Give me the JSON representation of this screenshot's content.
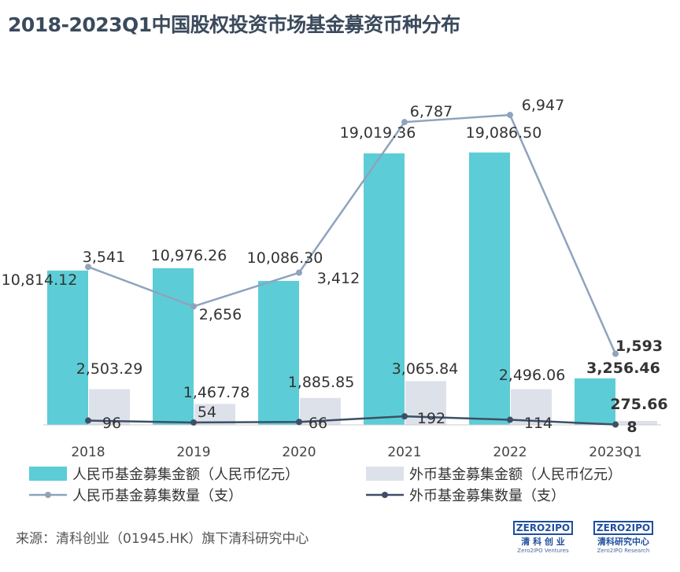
{
  "title": "2018-2023Q1中国股权投资市场基金募资币种分布",
  "source": "来源：清科创业（01945.HK）旗下清科研究中心",
  "logos": [
    {
      "mark": "ZERO2IPO",
      "cn": "清 科 创 业",
      "en": "Zero2IPO Ventures"
    },
    {
      "mark": "ZERO2IPO",
      "cn": "清科研究中心",
      "en": "Zero2IPO Research"
    }
  ],
  "chart_data": {
    "type": "bar+line",
    "categories": [
      "2018",
      "2019",
      "2020",
      "2021",
      "2022",
      "2023Q1"
    ],
    "series": [
      {
        "name": "人民币基金募集金额（人民币亿元）",
        "type": "bar",
        "color": "#5ccdd6",
        "values": [
          10814.12,
          10976.26,
          10086.3,
          19019.36,
          19086.5,
          3256.46
        ],
        "labels": [
          "10,814.12",
          "10,976.26",
          "10,086.30",
          "19,019.36",
          "19,086.50",
          "3,256.46"
        ]
      },
      {
        "name": "外币基金募集金额（人民币亿元）",
        "type": "bar",
        "color": "#dde1ea",
        "values": [
          2503.29,
          1467.78,
          1885.85,
          3065.84,
          2496.06,
          275.66
        ],
        "labels": [
          "2,503.29",
          "1,467.78",
          "1,885.85",
          "3,065.84",
          "2,496.06",
          "275.66"
        ]
      },
      {
        "name": "人民币基金募集数量（支）",
        "type": "line",
        "color": "#8fa3bd",
        "values": [
          3541,
          2656,
          3412,
          6787,
          6947,
          1593
        ],
        "labels": [
          "3,541",
          "2,656",
          "3,412",
          "6,787",
          "6,947",
          "1,593"
        ]
      },
      {
        "name": "外币基金募集数量（支）",
        "type": "line",
        "color": "#3d4f66",
        "values": [
          96,
          54,
          66,
          192,
          114,
          8
        ],
        "labels": [
          "96",
          "54",
          "66",
          "192",
          "114",
          "8"
        ]
      }
    ]
  }
}
